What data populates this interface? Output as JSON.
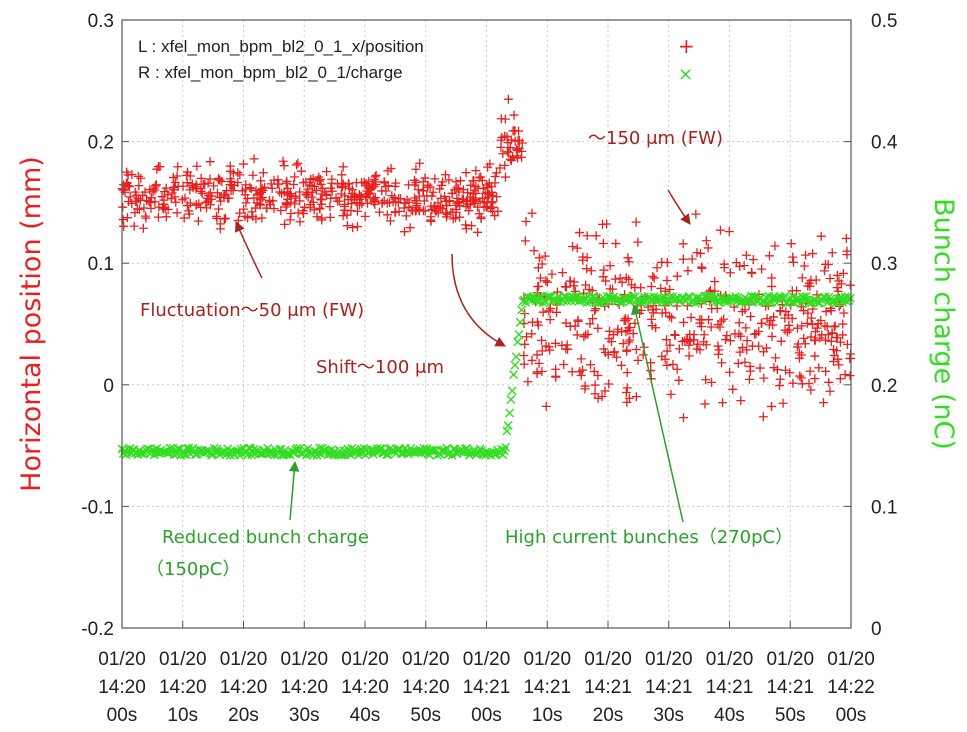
{
  "chart_data": {
    "type": "scatter",
    "x_tick_labels": [
      [
        "01/20",
        "14:20",
        "00s"
      ],
      [
        "01/20",
        "14:20",
        "10s"
      ],
      [
        "01/20",
        "14:20",
        "20s"
      ],
      [
        "01/20",
        "14:20",
        "30s"
      ],
      [
        "01/20",
        "14:20",
        "40s"
      ],
      [
        "01/20",
        "14:20",
        "50s"
      ],
      [
        "01/20",
        "14:21",
        "00s"
      ],
      [
        "01/20",
        "14:21",
        "10s"
      ],
      [
        "01/20",
        "14:21",
        "20s"
      ],
      [
        "01/20",
        "14:21",
        "30s"
      ],
      [
        "01/20",
        "14:21",
        "40s"
      ],
      [
        "01/20",
        "14:21",
        "50s"
      ],
      [
        "01/20",
        "14:22",
        "00s"
      ]
    ],
    "x_range_seconds": [
      0,
      120
    ],
    "y_left": {
      "label": "Horizontal position (mm)",
      "range": [
        -0.2,
        0.3
      ],
      "ticks": [
        "-0.2",
        "-0.1",
        "0",
        "0.1",
        "0.2",
        "0.3"
      ],
      "color": "#e8201f"
    },
    "y_right": {
      "label": "Bunch charge (nC)",
      "range": [
        0,
        0.5
      ],
      "ticks": [
        "0",
        "0.1",
        "0.2",
        "0.3",
        "0.4",
        "0.5"
      ],
      "color": "#33dd22"
    },
    "legend": {
      "position": "top",
      "entries": [
        {
          "text": "L : xfel_mon_bpm_bl2_0_1_x/position",
          "marker": "+",
          "color": "#e8201f"
        },
        {
          "text": "R : xfel_mon_bpm_bl2_0_1/charge",
          "marker": "×",
          "color": "#33dd22"
        }
      ]
    },
    "series": [
      {
        "name": "L : xfel_mon_bpm_bl2_0_1_x/position",
        "axis": "left",
        "marker": "+",
        "color": "#e8201f",
        "segments": [
          {
            "x_start": 0,
            "x_end": 62,
            "mean": 0.155,
            "spread": 0.025
          },
          {
            "x_start": 62,
            "x_end": 66,
            "mean": 0.2,
            "spread": 0.03
          },
          {
            "x_start": 66,
            "x_end": 120,
            "mean": 0.055,
            "spread": 0.075
          }
        ]
      },
      {
        "name": "R : xfel_mon_bpm_bl2_0_1/charge",
        "axis": "right",
        "marker": "×",
        "color": "#33dd22",
        "points": [
          [
            0,
            0.145
          ],
          [
            63,
            0.145
          ],
          [
            66,
            0.27
          ],
          [
            120,
            0.27
          ]
        ]
      }
    ],
    "annotations": [
      {
        "text": "～150 μm (FW)",
        "color": "#a8221e"
      },
      {
        "text": "Fluctuation～50 μm (FW)",
        "color": "#a8221e"
      },
      {
        "text": "Shift～100 μm",
        "color": "#a8221e"
      },
      {
        "text": "Reduced bunch charge",
        "color": "#2ca02c"
      },
      {
        "text": "（150pC）",
        "color": "#2ca02c"
      },
      {
        "text": "High current bunches（270pC）",
        "color": "#2ca02c"
      }
    ],
    "grid": true
  }
}
